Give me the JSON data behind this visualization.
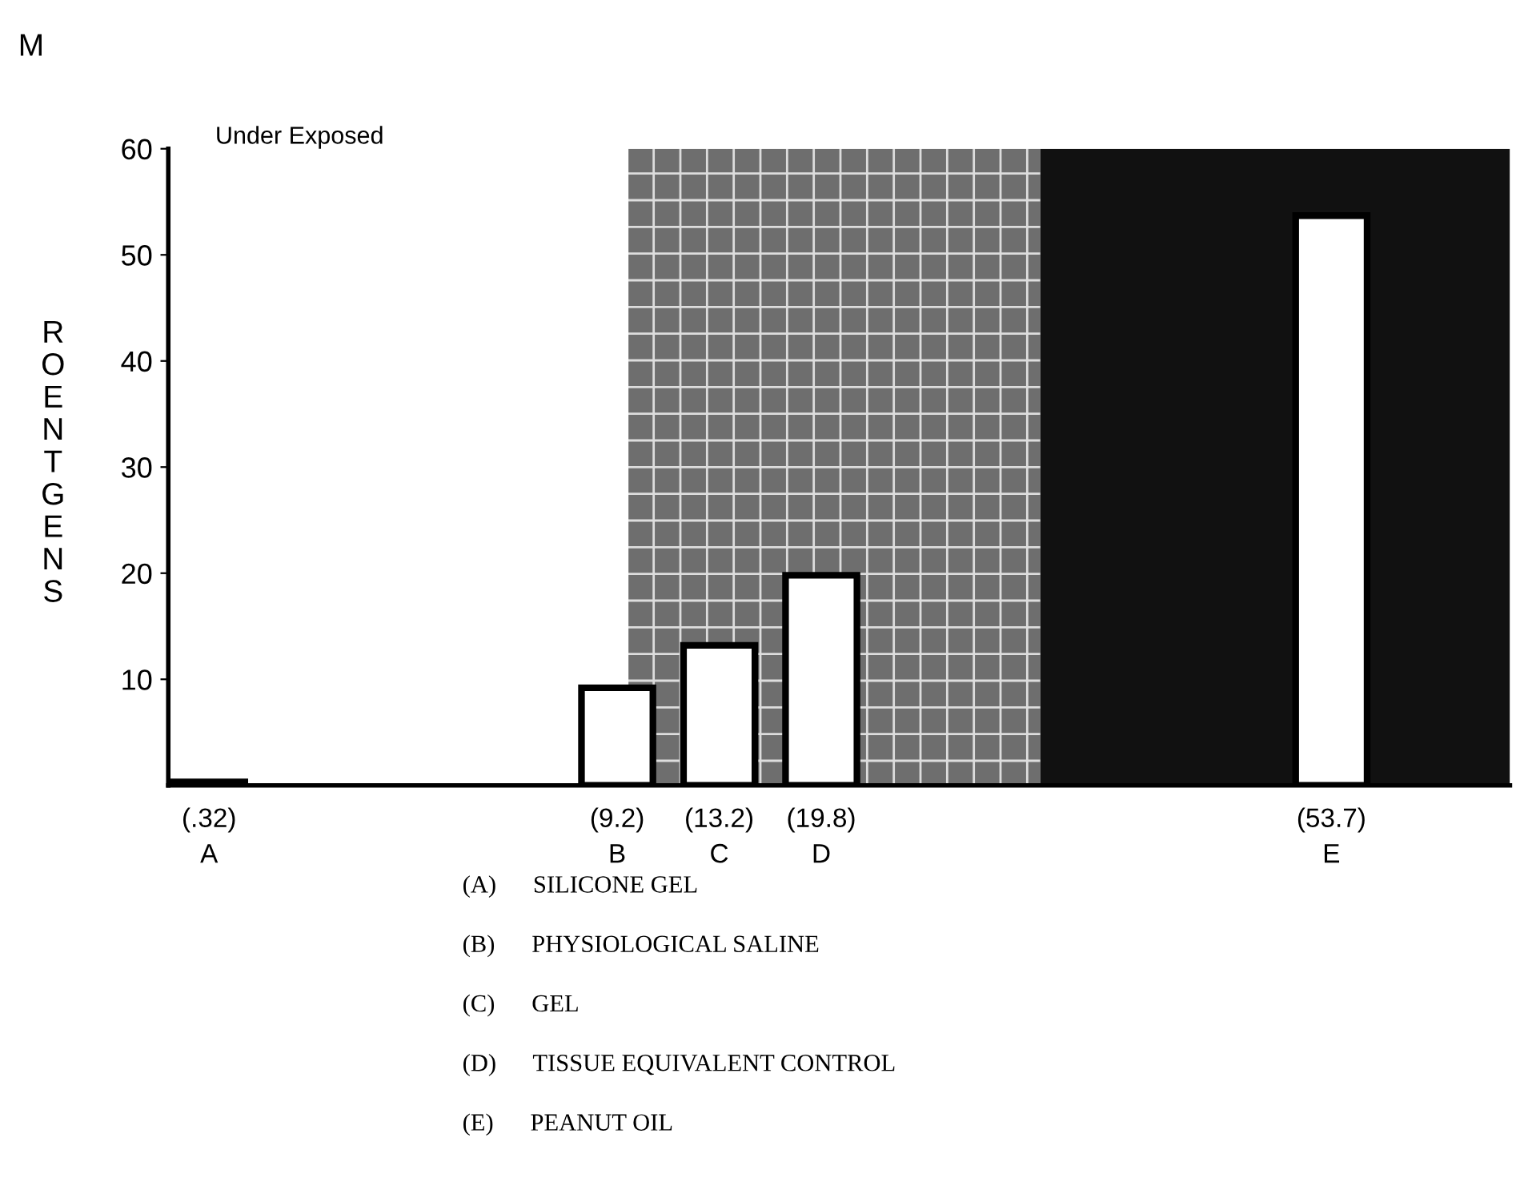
{
  "chart_data": {
    "type": "bar",
    "ylabel": "ROENTGENS",
    "categories": [
      "A",
      null,
      null,
      null,
      "B",
      "C",
      "D",
      null,
      null,
      null,
      null,
      "E",
      null
    ],
    "values": [
      0.32,
      null,
      null,
      null,
      9.2,
      13.2,
      19.8,
      null,
      null,
      null,
      null,
      53.7,
      null
    ],
    "value_labels": [
      "(.32)",
      null,
      null,
      null,
      "(9.2)",
      "(13.2)",
      "(19.8)",
      null,
      null,
      null,
      null,
      "(53.7)",
      null
    ],
    "colors": [
      "#ffffff",
      "#ffffff",
      "#ffffff",
      "#ffffff",
      "#ffffff",
      "#ffffff",
      "#ffffff",
      "#ffffff",
      "#ffffff",
      "#ffffff",
      "#ffffff",
      "#ffffff",
      "#ffffff"
    ],
    "ylim": [
      0,
      60
    ],
    "yticks": [
      10,
      20,
      30,
      40,
      50,
      {
        "value": 60,
        "label": "60"
      }
    ],
    "annotations": [
      "M",
      "Under Exposed",
      "(A)      SILICONE GEL",
      "(B)      PHYSIOLOGICAL SALINE",
      "(C)      GEL",
      "(D)      TISSUE EQUIVALENT CONTROL",
      "(E)      PEANUT OIL"
    ],
    "grid": false,
    "legend": false
  }
}
